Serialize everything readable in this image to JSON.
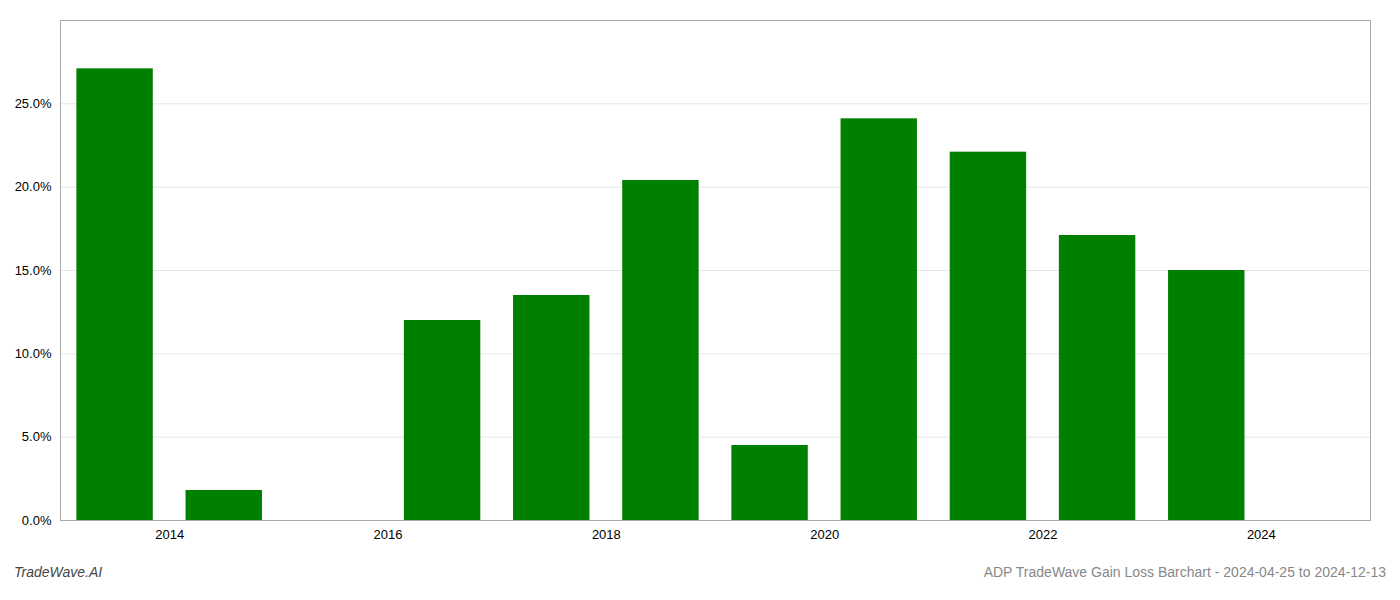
{
  "chart_data": {
    "type": "bar",
    "x": [
      2013.5,
      2014.5,
      2015.5,
      2016.5,
      2017.5,
      2018.5,
      2019.5,
      2020.5,
      2021.5,
      2022.5,
      2023.5
    ],
    "values": [
      0.271,
      0.018,
      0.0,
      0.12,
      0.135,
      0.204,
      0.045,
      0.241,
      0.221,
      0.171,
      0.15
    ],
    "color": "#008000",
    "xlim": [
      2013.0,
      2025.0
    ],
    "xticks": [
      2014,
      2016,
      2018,
      2020,
      2022,
      2024
    ],
    "ylim": [
      0,
      0.3
    ],
    "yticks": [
      {
        "value": 0.0,
        "label": "0.0%"
      },
      {
        "value": 0.05,
        "label": "5.0%"
      },
      {
        "value": 0.1,
        "label": "10.0%"
      },
      {
        "value": 0.15,
        "label": "15.0%"
      },
      {
        "value": 0.2,
        "label": "20.0%"
      },
      {
        "value": 0.25,
        "label": "25.0%"
      }
    ],
    "grid": true,
    "annotations": [
      "TradeWave.AI",
      "ADP TradeWave Gain Loss Barchart - 2024-04-25 to 2024-12-13"
    ]
  }
}
